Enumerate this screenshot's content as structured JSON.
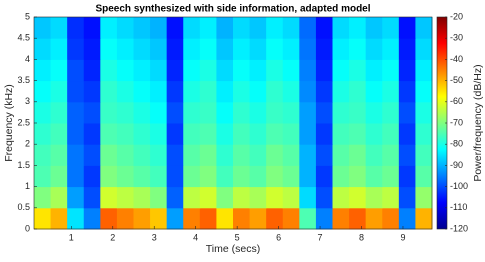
{
  "chart_data": {
    "type": "heatmap",
    "title": "Speech synthesized with side information, adapted model",
    "xlabel": "Time (secs)",
    "ylabel": "Frequency (kHz)",
    "colorbar_label": "Power/frequency (dB/Hz)",
    "colormap": "jet",
    "xlim": [
      0.1,
      9.7
    ],
    "xticks": [
      1,
      2,
      3,
      4,
      5,
      6,
      7,
      8,
      9
    ],
    "ylim": [
      0,
      5
    ],
    "yticks": [
      0,
      0.5,
      1,
      1.5,
      2,
      2.5,
      3,
      3.5,
      4,
      4.5,
      5
    ],
    "clim": [
      -120,
      -20
    ],
    "cticks": [
      -20,
      -30,
      -40,
      -50,
      -60,
      -70,
      -80,
      -90,
      -100,
      -110,
      -120
    ],
    "x": [
      0.3,
      0.7,
      1.1,
      1.5,
      1.9,
      2.3,
      2.7,
      3.1,
      3.5,
      3.9,
      4.3,
      4.7,
      5.1,
      5.5,
      5.9,
      6.3,
      6.7,
      7.1,
      7.5,
      7.9,
      8.3,
      8.7,
      9.1,
      9.5
    ],
    "y": [
      0.25,
      0.75,
      1.25,
      1.75,
      2.25,
      2.75,
      3.25,
      3.75,
      4.25,
      4.75
    ],
    "z": [
      [
        -55,
        -50,
        -85,
        -95,
        -42,
        -45,
        -48,
        -52,
        -92,
        -45,
        -42,
        -55,
        -45,
        -48,
        -42,
        -45,
        -75,
        -95,
        -45,
        -42,
        -48,
        -45,
        -95,
        -50
      ],
      [
        -70,
        -66,
        -92,
        -100,
        -62,
        -64,
        -66,
        -70,
        -98,
        -64,
        -62,
        -70,
        -64,
        -66,
        -62,
        -64,
        -86,
        -100,
        -64,
        -62,
        -66,
        -64,
        -100,
        -68
      ],
      [
        -75,
        -72,
        -96,
        -102,
        -70,
        -72,
        -74,
        -76,
        -100,
        -72,
        -70,
        -76,
        -72,
        -74,
        -70,
        -72,
        -90,
        -102,
        -72,
        -70,
        -74,
        -72,
        -102,
        -74
      ],
      [
        -76,
        -74,
        -96,
        -100,
        -72,
        -74,
        -76,
        -78,
        -100,
        -74,
        -72,
        -78,
        -74,
        -76,
        -72,
        -74,
        -90,
        -100,
        -74,
        -72,
        -76,
        -74,
        -100,
        -76
      ],
      [
        -78,
        -76,
        -98,
        -102,
        -75,
        -76,
        -78,
        -80,
        -102,
        -76,
        -75,
        -80,
        -76,
        -78,
        -75,
        -76,
        -92,
        -102,
        -76,
        -75,
        -78,
        -76,
        -102,
        -78
      ],
      [
        -80,
        -78,
        -98,
        -100,
        -77,
        -78,
        -80,
        -82,
        -100,
        -78,
        -77,
        -82,
        -78,
        -80,
        -77,
        -78,
        -92,
        -100,
        -78,
        -77,
        -80,
        -78,
        -100,
        -80
      ],
      [
        -82,
        -80,
        -100,
        -102,
        -78,
        -80,
        -82,
        -84,
        -102,
        -80,
        -78,
        -84,
        -80,
        -82,
        -78,
        -80,
        -94,
        -102,
        -80,
        -78,
        -82,
        -80,
        -102,
        -82
      ],
      [
        -84,
        -82,
        -100,
        -104,
        -80,
        -82,
        -84,
        -86,
        -104,
        -82,
        -80,
        -86,
        -82,
        -84,
        -80,
        -82,
        -95,
        -104,
        -82,
        -80,
        -84,
        -82,
        -104,
        -84
      ],
      [
        -86,
        -84,
        -102,
        -105,
        -82,
        -84,
        -86,
        -88,
        -105,
        -84,
        -82,
        -88,
        -84,
        -86,
        -82,
        -84,
        -96,
        -105,
        -84,
        -82,
        -86,
        -84,
        -105,
        -86
      ],
      [
        -88,
        -86,
        -103,
        -106,
        -84,
        -86,
        -88,
        -90,
        -106,
        -86,
        -84,
        -90,
        -86,
        -88,
        -84,
        -86,
        -97,
        -106,
        -86,
        -84,
        -88,
        -86,
        -106,
        -88
      ]
    ]
  }
}
